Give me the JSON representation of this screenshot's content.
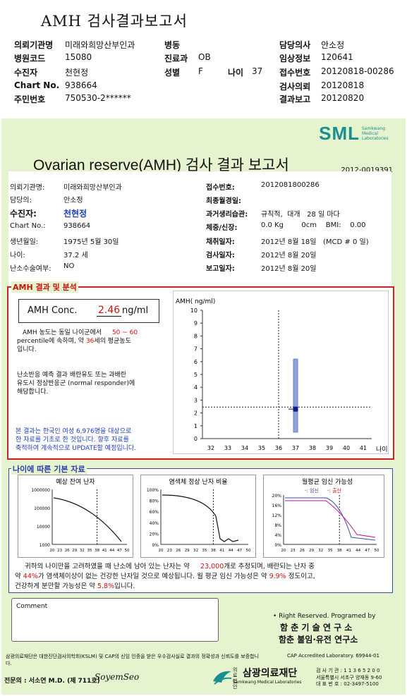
{
  "header": {
    "title": "AMH 검사결과보고서",
    "rows": [
      {
        "l1": "의뢰기관명",
        "v1": "미래와희망산부인과",
        "l2": "병동",
        "v2": "",
        "l3": "담당의사",
        "v3": "안소정"
      },
      {
        "l1": "병원코드",
        "v1": "15080",
        "l2": "진료과",
        "v2": "OB",
        "l3": "임상정보",
        "v3": "120641"
      },
      {
        "l1": "수진자",
        "v1": "천현정",
        "l2": "성별",
        "v2": "F",
        "l2b": "나이",
        "v2b": "37",
        "l3": "접수번호",
        "v3": "20120818-00286"
      },
      {
        "l1": "Chart No.",
        "v1": "938664",
        "l2": "",
        "v2": "",
        "l3": "검사의뢰",
        "v3": "20120818"
      },
      {
        "l1": "주민번호",
        "v1": "750530-2******",
        "l2": "",
        "v2": "",
        "l3": "결과보고",
        "v3": "20120820"
      }
    ]
  },
  "report": {
    "logo": "SML",
    "logo_sub": "Samkwang Medical Laboratories",
    "title": "Ovarian reserve(AMH) 검사 결과 보고서",
    "report_no": "2012-0019391",
    "left": [
      {
        "label": "의뢰기관명:",
        "value": "미래와희망산부인과"
      },
      {
        "label": "담당의:",
        "value": "안소정"
      },
      {
        "label": "수진자:",
        "value": "천현정"
      },
      {
        "label": "Chart No.:",
        "value": "938664"
      },
      {
        "label": "생년월일:",
        "value": "1975년 5월 30일"
      },
      {
        "label": "나이:",
        "value": "37.2 세"
      },
      {
        "label": "난소수술여부:",
        "value": "NO"
      }
    ],
    "right": [
      {
        "label": "접수번호:",
        "value": "2012081800286"
      },
      {
        "label": "최종월경일:",
        "value": ""
      },
      {
        "label": "과거생리습관:",
        "value": "규칙적,  대개   28 일 마다"
      },
      {
        "label": "체중/신장:",
        "value": "0.0 Kg        0cm    BMI:    0.00"
      },
      {
        "label": "채취일자:",
        "value": "2012년 8월 18일   (MCD # 0 일)"
      },
      {
        "label": "검사일자:",
        "value": "2012년 8월 20일"
      },
      {
        "label": "보고일자:",
        "value": "2012년 8월 20일"
      }
    ],
    "amh_section_title": "AMH 결과 및 분석",
    "amh_label": "AMH Conc.",
    "amh_value": "2.46",
    "amh_unit": "ng/ml",
    "para1a": "AMH 농도는 동일 나이군에서",
    "para1_range": "50 ~ 60",
    "para1b": "percentile에 속하며,  약",
    "para1_age": "36",
    "para1c": "세의 평균농도",
    "para1d": "입니다.",
    "para2a": "난소반응 예측 결과 배란유도 또는 과배란",
    "para2b": "유도시 정상반응군 (normal responder)에",
    "para2c": "해당합니다.",
    "para3a": "본 결과는 한국인 여성 6,976명을 대상으로",
    "para3b": "한 자료를 기초로 한 것입니다. 향후 자료를",
    "para3c": "축적하여 계속적으로 UPDATE할 예정입니다.",
    "age_section_title": "나이에 따른 기본 자료",
    "summary1a": "귀하의 나이만을 고려하였을 때 난소에 남아 있는 난자는 약",
    "summary1_num": "23,000",
    "summary1b": "개로 추정되며, 배란되는 난자 중",
    "summary2a": "약",
    "summary2_num": "44%",
    "summary2b": "가 염색체이상이 없는 건강한 난자일 것으로 예상됩니다. 월 평균 임신 가능성은 약",
    "summary2_num2": "9.9%",
    "summary2c": "정도이고,",
    "summary3a": "건강하게 분만할 가능성은 약",
    "summary3_num": "5.8%",
    "summary3b": "입니다.",
    "comment_label": "Comment",
    "rights": "• Right Reserved. Programed by",
    "inst1": "함 춘  기 술  연 구 소",
    "inst2": "함춘 불임·유전 연구소",
    "footer_note": "삼광의료재단은 대한진단검사의학회(KSLM) 및 CAP의 신임 인증을 받은 우수검사실로 결과의 정확성과 신뢰도를 보증합니다.",
    "cap": "CAP  Accredited  Laboratory.  69944-01",
    "doctor": "전문의 : 서소연 M.D. (제 711호)",
    "signature": "SoyemSeo",
    "foundation_small": "의료법인",
    "foundation": "삼광의료재단",
    "foundation_sub": "Samkwang Medical Laboratories",
    "addr1": "검 사 기 관 : 1 1 3 6 5 2 0 0",
    "addr2": "서울특별시 서초구 양재동 9-60",
    "addr3": "대 표 번 호 : 02-3497-5100"
  },
  "chart_data": [
    {
      "type": "scatter",
      "title": "",
      "ylabel": "AMH( ng/ml)",
      "xlabel": "나이",
      "x_ticks": [
        32,
        33,
        34,
        35,
        36,
        37,
        38,
        39,
        40,
        41
      ],
      "y_ticks": [
        0,
        1,
        2,
        3,
        4,
        5,
        6,
        7,
        8,
        9,
        10
      ],
      "ylim": [
        0,
        10
      ],
      "range_bar": {
        "x": 37,
        "low": 0.5,
        "high": 6.2
      },
      "point": {
        "x": 37,
        "y": 2.3
      },
      "ref_lines": {
        "age": 36,
        "amh": 2.46
      }
    },
    {
      "type": "line",
      "title": "예상 잔여 난자",
      "y_ticks": [
        "1000000",
        "100000",
        "10000",
        "1000"
      ],
      "x_ticks": [
        20,
        23,
        26,
        29,
        32,
        35,
        38,
        41,
        44,
        47,
        50
      ]
    },
    {
      "type": "line",
      "title": "염색체 정상 난자 비율",
      "y_ticks": [
        "100%",
        "80%",
        "60%",
        "40%",
        "20%",
        "0%"
      ],
      "x_ticks": [
        20,
        23,
        26,
        29,
        32,
        35,
        38,
        41,
        44,
        47,
        50
      ]
    },
    {
      "type": "line",
      "title": "월평균 임신 가능성",
      "legend": [
        "임신",
        "출산"
      ],
      "y_ticks": [
        "20%",
        "16%",
        "12%",
        "8%",
        "4%",
        "0%"
      ],
      "x_ticks": [
        20,
        23,
        26,
        29,
        32,
        35,
        38,
        41,
        44,
        47,
        50
      ]
    }
  ],
  "colors": {
    "red": "#cc1111",
    "blue": "#1c3fbf",
    "green_bg": "#e6f3cf",
    "teal": "#1a8f8f"
  }
}
